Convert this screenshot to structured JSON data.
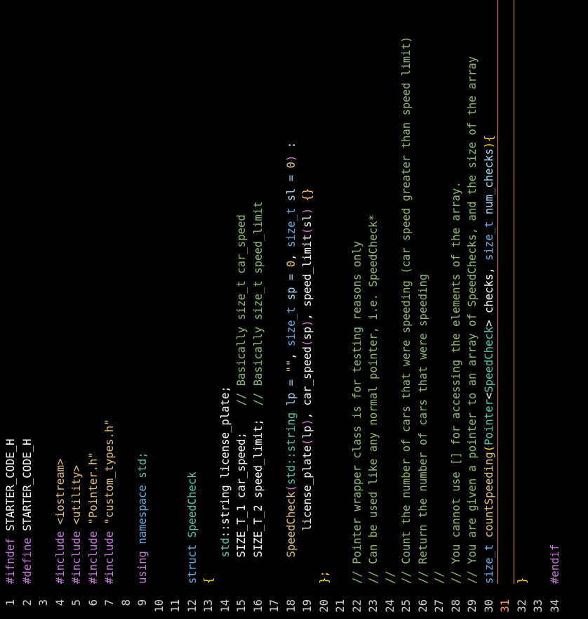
{
  "editor": {
    "current_line": "31",
    "lines": [
      {
        "n": "1",
        "tokens": [
          {
            "t": "#ifndef",
            "c": "kw"
          },
          {
            "t": " STARTER_CODE_H",
            "c": "plain"
          }
        ]
      },
      {
        "n": "2",
        "tokens": [
          {
            "t": "#define",
            "c": "kw"
          },
          {
            "t": " STARTER_CODE_H",
            "c": "plain"
          }
        ]
      },
      {
        "n": "3",
        "tokens": []
      },
      {
        "n": "4",
        "tokens": [
          {
            "t": "#include",
            "c": "kw"
          },
          {
            "t": " <iostream>",
            "c": "str"
          }
        ]
      },
      {
        "n": "5",
        "tokens": [
          {
            "t": "#include",
            "c": "kw"
          },
          {
            "t": " <utility>",
            "c": "str"
          }
        ]
      },
      {
        "n": "6",
        "tokens": [
          {
            "t": "#include",
            "c": "kw"
          },
          {
            "t": " \"Pointer.h\"",
            "c": "str"
          }
        ]
      },
      {
        "n": "7",
        "tokens": [
          {
            "t": "#include",
            "c": "kw"
          },
          {
            "t": " \"custom_types.h\"",
            "c": "str"
          }
        ]
      },
      {
        "n": "8",
        "tokens": []
      },
      {
        "n": "9",
        "tokens": [
          {
            "t": "using",
            "c": "kw"
          },
          {
            "t": " namespace",
            "c": "ty"
          },
          {
            "t": " std;",
            "c": "cls"
          }
        ]
      },
      {
        "n": "10",
        "tokens": []
      },
      {
        "n": "11",
        "tokens": []
      },
      {
        "n": "12",
        "tokens": [
          {
            "t": "struct",
            "c": "ty"
          },
          {
            "t": " SpeedCheck",
            "c": "cls"
          }
        ]
      },
      {
        "n": "13",
        "tokens": [
          {
            "t": "{",
            "c": "pn"
          }
        ]
      },
      {
        "n": "14",
        "tokens": [
          {
            "t": "    std",
            "c": "cls"
          },
          {
            "t": "::string license_plate;",
            "c": "plain"
          }
        ]
      },
      {
        "n": "15",
        "tokens": [
          {
            "t": "    SIZE_T_1 car_speed;",
            "c": "plain"
          },
          {
            "t": "    // Basically size_t car_speed",
            "c": "cm"
          }
        ]
      },
      {
        "n": "16",
        "tokens": [
          {
            "t": "    SIZE_T_2 speed_limit;",
            "c": "plain"
          },
          {
            "t": "  // Basically size_t speed_limit",
            "c": "cm"
          }
        ]
      },
      {
        "n": "17",
        "tokens": []
      },
      {
        "n": "18",
        "tokens": [
          {
            "t": "    SpeedCheck",
            "c": "str"
          },
          {
            "t": "(",
            "c": "pn2"
          },
          {
            "t": "std",
            "c": "cls"
          },
          {
            "t": "::string",
            "c": "cls"
          },
          {
            "t": " lp = ",
            "c": "pv"
          },
          {
            "t": "\"\"",
            "c": "str"
          },
          {
            "t": ", ",
            "c": "plain"
          },
          {
            "t": "size_t",
            "c": "ty"
          },
          {
            "t": " sp = ",
            "c": "pv"
          },
          {
            "t": "0",
            "c": "num"
          },
          {
            "t": ", ",
            "c": "plain"
          },
          {
            "t": "size_t",
            "c": "ty"
          },
          {
            "t": " sl = ",
            "c": "pv"
          },
          {
            "t": "0",
            "c": "num"
          },
          {
            "t": ")",
            "c": "pn2"
          },
          {
            "t": " :",
            "c": "plain"
          }
        ]
      },
      {
        "n": "19",
        "tokens": [
          {
            "t": "        license_plate",
            "c": "plain"
          },
          {
            "t": "(",
            "c": "pn2"
          },
          {
            "t": "lp",
            "c": "plain"
          },
          {
            "t": ")",
            "c": "pn2"
          },
          {
            "t": ", car_speed",
            "c": "plain"
          },
          {
            "t": "(",
            "c": "pn2"
          },
          {
            "t": "sp",
            "c": "plain"
          },
          {
            "t": ")",
            "c": "pn2"
          },
          {
            "t": ", speed_limit",
            "c": "plain"
          },
          {
            "t": "(",
            "c": "pn2"
          },
          {
            "t": "sl",
            "c": "plain"
          },
          {
            "t": ")",
            "c": "pn2"
          },
          {
            "t": " {}",
            "c": "orn"
          }
        ]
      },
      {
        "n": "20",
        "tokens": [
          {
            "t": "};",
            "c": "pn"
          }
        ]
      },
      {
        "n": "21",
        "tokens": []
      },
      {
        "n": "22",
        "tokens": [
          {
            "t": "// Pointer wrapper class is for testing reasons only",
            "c": "cm"
          }
        ]
      },
      {
        "n": "23",
        "tokens": [
          {
            "t": "// Can be used like any normal pointer, i.e. SpeedCheck*",
            "c": "cm"
          }
        ]
      },
      {
        "n": "24",
        "tokens": [
          {
            "t": "//",
            "c": "cm"
          }
        ]
      },
      {
        "n": "25",
        "tokens": [
          {
            "t": "// Count the number of cars that were speeding (car speed greater than speed limit)",
            "c": "cm"
          }
        ]
      },
      {
        "n": "26",
        "tokens": [
          {
            "t": "// Return the number of cars that were speeding",
            "c": "cm"
          }
        ]
      },
      {
        "n": "27",
        "tokens": [
          {
            "t": "//",
            "c": "cm"
          }
        ]
      },
      {
        "n": "28",
        "tokens": [
          {
            "t": "// You cannot use [] for accessing the elements of the array.",
            "c": "cm"
          }
        ]
      },
      {
        "n": "29",
        "tokens": [
          {
            "t": "// You are given a pointer to an array of SpeedChecks, and the size of the array",
            "c": "cm"
          }
        ]
      },
      {
        "n": "30",
        "tokens": [
          {
            "t": "size_t",
            "c": "ty"
          },
          {
            "t": " countSpeeding",
            "c": "str"
          },
          {
            "t": "(",
            "c": "pn"
          },
          {
            "t": "Pointer",
            "c": "cls"
          },
          {
            "t": "<",
            "c": "plain"
          },
          {
            "t": "SpeedCheck",
            "c": "cls"
          },
          {
            "t": "> checks, ",
            "c": "plain"
          },
          {
            "t": "size_t",
            "c": "ty"
          },
          {
            "t": " num_checks",
            "c": "pv"
          },
          {
            "t": ")",
            "c": "pn"
          },
          {
            "t": "{",
            "c": "pn"
          }
        ]
      },
      {
        "n": "31",
        "tokens": []
      },
      {
        "n": "32",
        "tokens": [
          {
            "t": "}",
            "c": "pn"
          }
        ]
      },
      {
        "n": "33",
        "tokens": []
      },
      {
        "n": "34",
        "tokens": [
          {
            "t": "#endif",
            "c": "kw"
          }
        ]
      }
    ]
  }
}
